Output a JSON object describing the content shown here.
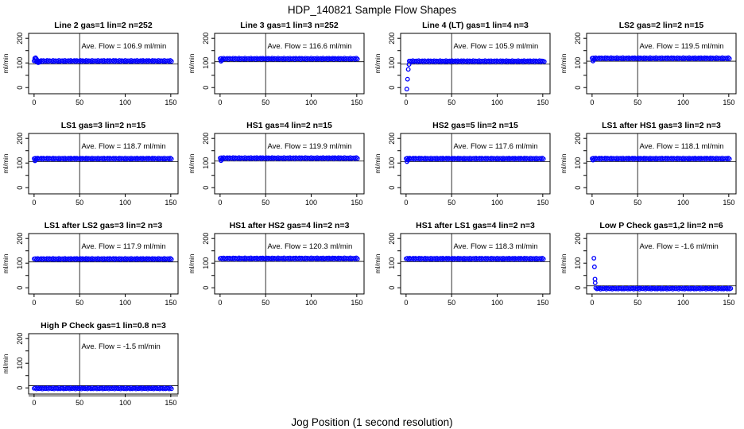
{
  "chart_data": {
    "type": "scatter",
    "figure_title": "HDP_140821  Sample Flow Shapes",
    "xlabel": "Jog Position (1 second resolution)",
    "ylabel": "ml/min",
    "x_ticks": [
      0,
      50,
      100,
      150
    ],
    "x_tick_labels": [
      "0",
      "50",
      "100",
      "150"
    ],
    "y_ticks_all": [
      0,
      50,
      100,
      150,
      200
    ],
    "y_ticks_labeled": [
      0,
      100,
      200
    ],
    "y_tick_labels": [
      "0",
      "100",
      "200"
    ],
    "xlim": [
      -6,
      158
    ],
    "ylim": [
      -25,
      220
    ],
    "vline_x": 50,
    "grid": false,
    "marker": {
      "shape": "open-circle",
      "color": "#0000FF"
    },
    "colors": {
      "marker": "#0000FF",
      "axis": "#000000",
      "background": "#FFFFFF"
    },
    "panels": [
      {
        "title": "Line 2 gas=1 lin=2 n=252",
        "ave_flow": 106.9,
        "ave_flow_label": "Ave. Flow =  106.9  ml/min",
        "band": {
          "x0": 0,
          "x1": 152,
          "level": 108
        },
        "ref_lines": [
          96
        ],
        "lead_points": [
          [
            0.8,
            119
          ],
          [
            1.6,
            121
          ],
          [
            2.4,
            117
          ],
          [
            3.2,
            105
          ],
          [
            4.5,
            101
          ],
          [
            6,
            103
          ]
        ]
      },
      {
        "title": "Line 3 gas=1 lin=3 n=252",
        "ave_flow": 116.6,
        "ave_flow_label": "Ave. Flow =  116.6  ml/min",
        "band": {
          "x0": 0,
          "x1": 152,
          "level": 117
        },
        "ref_lines": [
          105
        ],
        "lead_points": [
          [
            1,
            107
          ],
          [
            2,
            111
          ]
        ]
      },
      {
        "title": "Line 4 (LT) gas=1 lin=4 n=3",
        "ave_flow": 105.9,
        "ave_flow_label": "Ave. Flow =  105.9  ml/min",
        "band": {
          "x0": 3.5,
          "x1": 152,
          "level": 107
        },
        "ref_lines": [
          95
        ],
        "lead_points": [
          [
            0.8,
            -6
          ],
          [
            1.6,
            34
          ],
          [
            2.4,
            74
          ],
          [
            3.2,
            94
          ]
        ]
      },
      {
        "title": "LS2 gas=2 lin=2 n=15",
        "ave_flow": 119.5,
        "ave_flow_label": "Ave. Flow =  119.5  ml/min",
        "band": {
          "x0": 0,
          "x1": 152,
          "level": 119
        },
        "ref_lines": [
          107
        ],
        "lead_points": [
          [
            1,
            108
          ],
          [
            2,
            113
          ]
        ]
      },
      {
        "title": "LS1 gas=3 lin=2 n=15",
        "ave_flow": 118.7,
        "ave_flow_label": "Ave. Flow =  118.7  ml/min",
        "band": {
          "x0": 0,
          "x1": 152,
          "level": 118
        },
        "ref_lines": [
          106
        ],
        "lead_points": [
          [
            1,
            109
          ],
          [
            2,
            114
          ]
        ]
      },
      {
        "title": "HS1 gas=4 lin=2 n=15",
        "ave_flow": 119.9,
        "ave_flow_label": "Ave. Flow =  119.9  ml/min",
        "band": {
          "x0": 0,
          "x1": 152,
          "level": 120
        },
        "ref_lines": [
          108
        ],
        "lead_points": [
          [
            1,
            110
          ],
          [
            2,
            115
          ]
        ]
      },
      {
        "title": "HS2 gas=5 lin=2 n=15",
        "ave_flow": 117.6,
        "ave_flow_label": "Ave. Flow =  117.6  ml/min",
        "band": {
          "x0": 0,
          "x1": 152,
          "level": 118
        },
        "ref_lines": [
          106
        ],
        "lead_points": [
          [
            1,
            106
          ],
          [
            2,
            112
          ]
        ]
      },
      {
        "title": "LS1 after HS1 gas=3 lin=2 n=3",
        "ave_flow": 118.1,
        "ave_flow_label": "Ave. Flow =  118.1  ml/min",
        "band": {
          "x0": 0,
          "x1": 152,
          "level": 118
        },
        "ref_lines": [
          106
        ],
        "lead_points": [
          [
            1,
            112
          ]
        ]
      },
      {
        "title": "LS1 after LS2 gas=3 lin=2 n=3",
        "ave_flow": 117.9,
        "ave_flow_label": "Ave. Flow =  117.9  ml/min",
        "band": {
          "x0": 0,
          "x1": 152,
          "level": 117
        },
        "ref_lines": [
          105
        ],
        "lead_points": []
      },
      {
        "title": "HS1 after HS2 gas=4 lin=2 n=3",
        "ave_flow": 120.3,
        "ave_flow_label": "Ave. Flow =  120.3  ml/min",
        "band": {
          "x0": 0,
          "x1": 152,
          "level": 119
        },
        "ref_lines": [
          107
        ],
        "lead_points": []
      },
      {
        "title": "HS1 after LS1 gas=4 lin=2 n=3",
        "ave_flow": 118.3,
        "ave_flow_label": "Ave. Flow =  118.3  ml/min",
        "band": {
          "x0": 0,
          "x1": 152,
          "level": 118
        },
        "ref_lines": [
          106
        ],
        "lead_points": []
      },
      {
        "title": "Low P Check gas=1,2 lin=2 n=6",
        "ave_flow": -1.6,
        "ave_flow_label": "Ave. Flow =  -1.6  ml/min",
        "band": {
          "x0": 4,
          "x1": 153,
          "level": -3
        },
        "ref_lines": [
          8
        ],
        "lead_points": [
          [
            2,
            120
          ],
          [
            2.6,
            85
          ],
          [
            3.2,
            35
          ],
          [
            3.4,
            20
          ]
        ]
      },
      {
        "title": "High P Check gas=1 lin=0.8 n=3",
        "ave_flow": -1.5,
        "ave_flow_label": "Ave. Flow =  -1.5  ml/min",
        "band": {
          "x0": 0,
          "x1": 152,
          "level": -2
        },
        "ref_lines": [
          9,
          -32
        ],
        "lead_points": []
      }
    ]
  }
}
